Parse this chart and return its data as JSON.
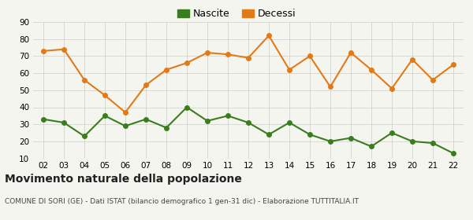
{
  "years": [
    2,
    3,
    4,
    5,
    6,
    7,
    8,
    9,
    10,
    11,
    12,
    13,
    14,
    15,
    16,
    17,
    18,
    19,
    20,
    21,
    22
  ],
  "nascite": [
    33,
    31,
    23,
    35,
    29,
    33,
    28,
    40,
    32,
    35,
    31,
    24,
    31,
    24,
    20,
    22,
    17,
    25,
    20,
    19,
    13
  ],
  "decessi": [
    73,
    74,
    56,
    47,
    37,
    53,
    62,
    66,
    72,
    71,
    69,
    82,
    62,
    70,
    52,
    72,
    62,
    51,
    68,
    56,
    65
  ],
  "nascite_color": "#3a7d1e",
  "decessi_color": "#e07b1a",
  "marker_size": 4,
  "line_width": 1.5,
  "ylim": [
    10,
    90
  ],
  "yticks": [
    10,
    20,
    30,
    40,
    50,
    60,
    70,
    80,
    90
  ],
  "title": "Movimento naturale della popolazione",
  "subtitle": "COMUNE DI SORI (GE) - Dati ISTAT (bilancio demografico 1 gen-31 dic) - Elaborazione TUTTITALIA.IT",
  "legend_nascite": "Nascite",
  "legend_decessi": "Decessi",
  "background_color": "#f5f5f0",
  "grid_color": "#cccccc"
}
